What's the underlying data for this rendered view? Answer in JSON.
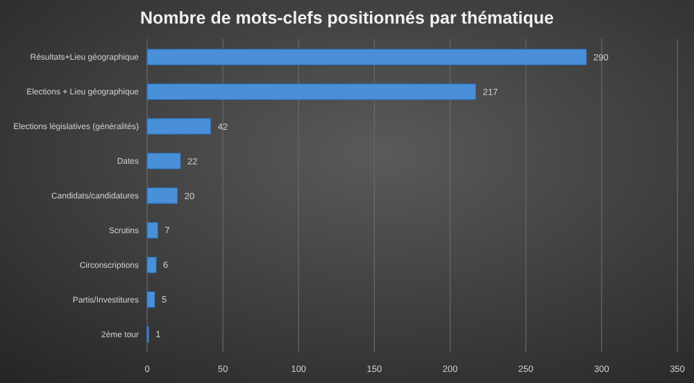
{
  "chart_data": {
    "type": "bar",
    "orientation": "horizontal",
    "title": "Nombre de mots-clefs positionnés par thématique",
    "categories": [
      "Résultats+Lieu géographique",
      "Elections + Lieu géographique",
      "Elections législatives (généralités)",
      "Dates",
      "Candidats/candidatures",
      "Scrutins",
      "Circonscriptions",
      "Partis/Investitures",
      "2ème tour"
    ],
    "values": [
      290,
      217,
      42,
      22,
      20,
      7,
      6,
      5,
      1
    ],
    "color": "#4a90d9",
    "xlim": [
      0,
      350
    ],
    "xticks": [
      0,
      50,
      100,
      150,
      200,
      250,
      300,
      350
    ],
    "grid": "x",
    "data_labels": true
  }
}
